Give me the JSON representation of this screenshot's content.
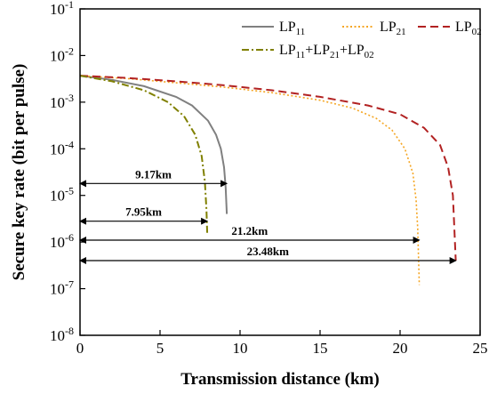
{
  "chart_data": {
    "type": "line",
    "xlabel": "Transmission distance (km)",
    "ylabel": "Secure key rate (bit per pulse)",
    "xlim": [
      0,
      25
    ],
    "ylim": [
      1e-08,
      0.1
    ],
    "yscale": "log",
    "x_ticks": [
      "0",
      "5",
      "10",
      "15",
      "20",
      "25"
    ],
    "y_ticks": [
      {
        "base": "10",
        "exp": "-8"
      },
      {
        "base": "10",
        "exp": "-7"
      },
      {
        "base": "10",
        "exp": "-6"
      },
      {
        "base": "10",
        "exp": "-5"
      },
      {
        "base": "10",
        "exp": "-4"
      },
      {
        "base": "10",
        "exp": "-3"
      },
      {
        "base": "10",
        "exp": "-2"
      },
      {
        "base": "10",
        "exp": "-1"
      }
    ],
    "grid": false,
    "legend_position": "top-right",
    "series": [
      {
        "name": "LP11",
        "label_main": "LP",
        "label_sub": "11",
        "color": "#808080",
        "dash": "solid",
        "x": [
          0,
          2,
          4,
          6,
          7,
          8,
          8.5,
          8.8,
          9.0,
          9.1,
          9.15,
          9.17
        ],
        "y": [
          0.0037,
          0.003,
          0.0022,
          0.0013,
          0.00085,
          0.0004,
          0.0002,
          0.0001,
          4e-05,
          1.5e-05,
          6e-06,
          4e-06
        ]
      },
      {
        "name": "LP21",
        "label_main": "LP",
        "label_sub": "21",
        "color": "#F5A623",
        "dash": "dotted",
        "x": [
          0,
          3,
          6,
          9,
          12,
          15,
          17,
          18.5,
          19.5,
          20.3,
          20.8,
          21.0,
          21.1,
          21.2
        ],
        "y": [
          0.0037,
          0.0032,
          0.0026,
          0.0021,
          0.0016,
          0.0011,
          0.00075,
          0.00045,
          0.00025,
          0.0001,
          3e-05,
          8e-06,
          2e-06,
          1.2e-07
        ]
      },
      {
        "name": "LP02",
        "label_main": "LP",
        "label_sub": "02",
        "color": "#B22222",
        "dash": "dashed",
        "x": [
          0,
          3,
          6,
          9,
          12,
          15,
          18,
          20,
          21.5,
          22.5,
          23.0,
          23.3,
          23.48
        ],
        "y": [
          0.0037,
          0.0033,
          0.0028,
          0.0023,
          0.0018,
          0.0013,
          0.00085,
          0.00055,
          0.00028,
          0.00012,
          4e-05,
          1e-05,
          4e-07
        ]
      },
      {
        "name": "LP11+LP21+LP02",
        "label_parts": [
          {
            "t": "LP"
          },
          {
            "sub": "11"
          },
          {
            "t": "+LP"
          },
          {
            "sub": "21"
          },
          {
            "t": "+LP"
          },
          {
            "sub": "02"
          }
        ],
        "color": "#808000",
        "dash": "dashdot",
        "x": [
          0,
          2,
          4,
          5.5,
          6.5,
          7.2,
          7.6,
          7.8,
          7.9,
          7.95
        ],
        "y": [
          0.0037,
          0.0028,
          0.0018,
          0.001,
          0.0005,
          0.0002,
          7e-05,
          2e-05,
          5e-06,
          1.5e-06
        ]
      }
    ],
    "annotations": [
      {
        "text": "9.17km",
        "x_start": 0,
        "x_end": 9.17,
        "y": 1.8e-05
      },
      {
        "text": "7.95km",
        "x_start": 0,
        "x_end": 7.95,
        "y": 2.8e-06
      },
      {
        "text": "21.2km",
        "x_start": 0,
        "x_end": 21.2,
        "y": 1.1e-06
      },
      {
        "text": "23.48km",
        "x_start": 0,
        "x_end": 23.48,
        "y": 4e-07
      }
    ]
  }
}
